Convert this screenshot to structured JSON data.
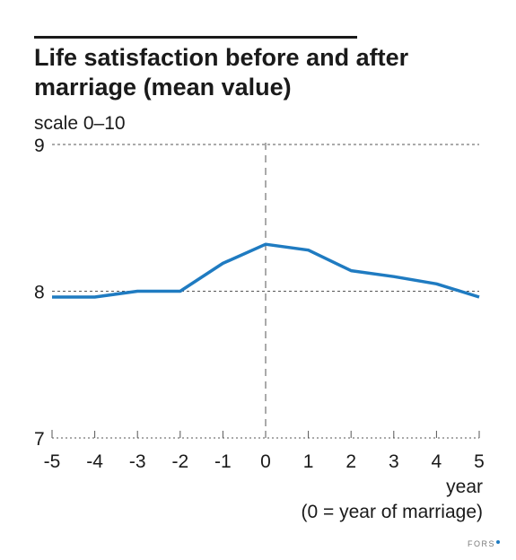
{
  "chart_data": {
    "type": "line",
    "title": "Life satisfaction before and after marriage (mean value)",
    "ylabel": "scale 0–10",
    "xlabel_lines": [
      "year",
      "(0 = year of marriage)"
    ],
    "x": [
      -5,
      -4,
      -3,
      -2,
      -1,
      0,
      1,
      2,
      3,
      4,
      5
    ],
    "x_tick_labels": [
      "-5",
      "-4",
      "-3",
      "-2",
      "-1",
      "0",
      "1",
      "2",
      "3",
      "4",
      "5"
    ],
    "y_ticks": [
      7,
      8,
      9
    ],
    "y_tick_labels": [
      "7",
      "8",
      "9"
    ],
    "ylim": [
      7,
      9
    ],
    "xlim": [
      -5,
      5
    ],
    "series": [
      {
        "values": [
          7.96,
          7.96,
          8.0,
          8.0,
          8.19,
          8.32,
          8.28,
          8.14,
          8.1,
          8.05,
          7.96
        ],
        "color": "#1f7bc1"
      }
    ],
    "reference_line_x": 0,
    "gridlines": "horizontal dashed at 8 and 9",
    "legend": "none"
  },
  "colors": {
    "line": "#1f7bc1",
    "text": "#1a1a1a",
    "grid": "#555555",
    "brand_dot": "#1f7bc1"
  },
  "branding": {
    "text": "FORS"
  }
}
